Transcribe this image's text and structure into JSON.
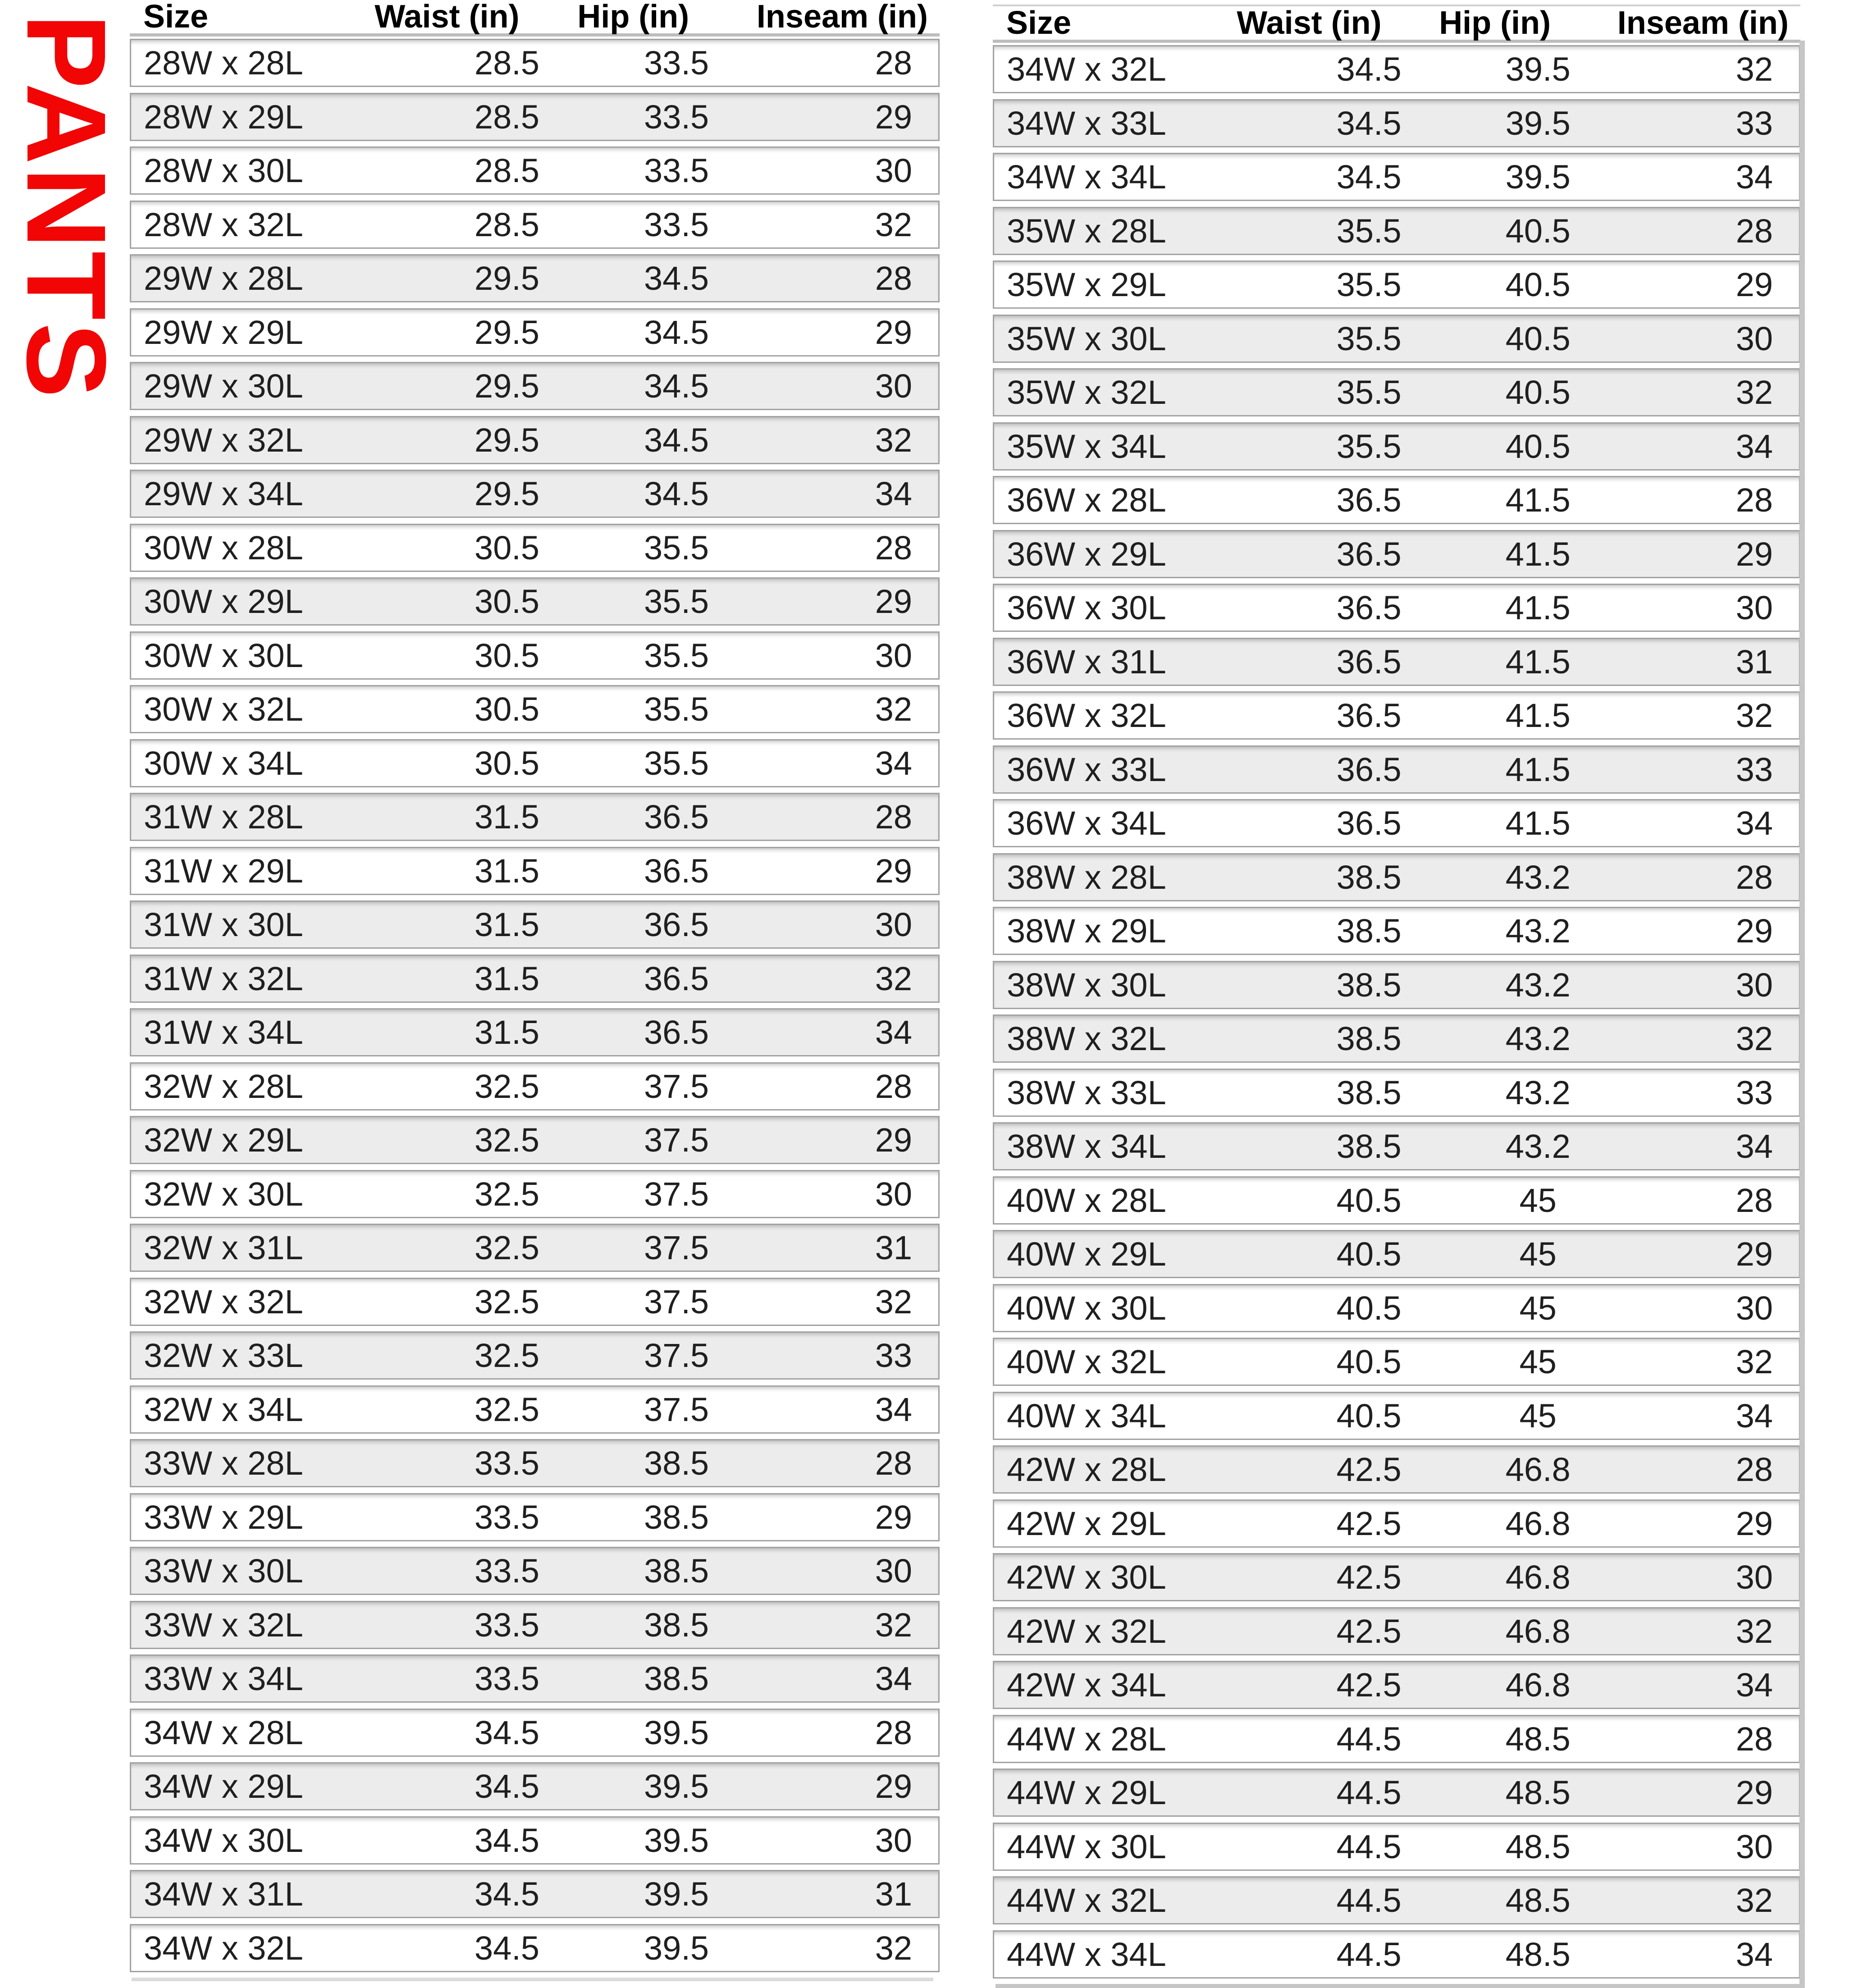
{
  "page": {
    "label": "PANTS"
  },
  "style": {
    "accent": "#f10505",
    "row_bg": "#ffffff",
    "row_shaded_bg": "#ececec",
    "row_border": "#a2a2a2",
    "text_color": "#1f1f1f",
    "header_color": "#000000"
  },
  "columns": [
    "Size",
    "Waist (in)",
    "Hip (in)",
    "Inseam (in)"
  ],
  "tables": {
    "left": {
      "rows": [
        {
          "size": "28W x 28L",
          "waist": "28.5",
          "hip": "33.5",
          "inseam": "28",
          "shaded": false
        },
        {
          "size": "28W x 29L",
          "waist": "28.5",
          "hip": "33.5",
          "inseam": "29",
          "shaded": true
        },
        {
          "size": "28W x 30L",
          "waist": "28.5",
          "hip": "33.5",
          "inseam": "30",
          "shaded": false
        },
        {
          "size": "28W x 32L",
          "waist": "28.5",
          "hip": "33.5",
          "inseam": "32",
          "shaded": false
        },
        {
          "size": "29W x 28L",
          "waist": "29.5",
          "hip": "34.5",
          "inseam": "28",
          "shaded": true
        },
        {
          "size": "29W x 29L",
          "waist": "29.5",
          "hip": "34.5",
          "inseam": "29",
          "shaded": false
        },
        {
          "size": "29W x 30L",
          "waist": "29.5",
          "hip": "34.5",
          "inseam": "30",
          "shaded": true
        },
        {
          "size": "29W x 32L",
          "waist": "29.5",
          "hip": "34.5",
          "inseam": "32",
          "shaded": true
        },
        {
          "size": "29W x 34L",
          "waist": "29.5",
          "hip": "34.5",
          "inseam": "34",
          "shaded": true
        },
        {
          "size": "30W x 28L",
          "waist": "30.5",
          "hip": "35.5",
          "inseam": "28",
          "shaded": false
        },
        {
          "size": "30W x 29L",
          "waist": "30.5",
          "hip": "35.5",
          "inseam": "29",
          "shaded": true
        },
        {
          "size": "30W x 30L",
          "waist": "30.5",
          "hip": "35.5",
          "inseam": "30",
          "shaded": false
        },
        {
          "size": "30W x 32L",
          "waist": "30.5",
          "hip": "35.5",
          "inseam": "32",
          "shaded": false
        },
        {
          "size": "30W x 34L",
          "waist": "30.5",
          "hip": "35.5",
          "inseam": "34",
          "shaded": false
        },
        {
          "size": "31W x 28L",
          "waist": "31.5",
          "hip": "36.5",
          "inseam": "28",
          "shaded": true
        },
        {
          "size": "31W x 29L",
          "waist": "31.5",
          "hip": "36.5",
          "inseam": "29",
          "shaded": false
        },
        {
          "size": "31W x 30L",
          "waist": "31.5",
          "hip": "36.5",
          "inseam": "30",
          "shaded": true
        },
        {
          "size": "31W x 32L",
          "waist": "31.5",
          "hip": "36.5",
          "inseam": "32",
          "shaded": true
        },
        {
          "size": "31W x 34L",
          "waist": "31.5",
          "hip": "36.5",
          "inseam": "34",
          "shaded": true
        },
        {
          "size": "32W x 28L",
          "waist": "32.5",
          "hip": "37.5",
          "inseam": "28",
          "shaded": false
        },
        {
          "size": "32W x 29L",
          "waist": "32.5",
          "hip": "37.5",
          "inseam": "29",
          "shaded": true
        },
        {
          "size": "32W x 30L",
          "waist": "32.5",
          "hip": "37.5",
          "inseam": "30",
          "shaded": false
        },
        {
          "size": "32W x 31L",
          "waist": "32.5",
          "hip": "37.5",
          "inseam": "31",
          "shaded": true
        },
        {
          "size": "32W x 32L",
          "waist": "32.5",
          "hip": "37.5",
          "inseam": "32",
          "shaded": false
        },
        {
          "size": "32W x 33L",
          "waist": "32.5",
          "hip": "37.5",
          "inseam": "33",
          "shaded": true
        },
        {
          "size": "32W x 34L",
          "waist": "32.5",
          "hip": "37.5",
          "inseam": "34",
          "shaded": false
        },
        {
          "size": "33W x 28L",
          "waist": "33.5",
          "hip": "38.5",
          "inseam": "28",
          "shaded": true
        },
        {
          "size": "33W x 29L",
          "waist": "33.5",
          "hip": "38.5",
          "inseam": "29",
          "shaded": false
        },
        {
          "size": "33W x 30L",
          "waist": "33.5",
          "hip": "38.5",
          "inseam": "30",
          "shaded": true
        },
        {
          "size": "33W x 32L",
          "waist": "33.5",
          "hip": "38.5",
          "inseam": "32",
          "shaded": true
        },
        {
          "size": "33W x 34L",
          "waist": "33.5",
          "hip": "38.5",
          "inseam": "34",
          "shaded": true
        },
        {
          "size": "34W x 28L",
          "waist": "34.5",
          "hip": "39.5",
          "inseam": "28",
          "shaded": false
        },
        {
          "size": "34W x 29L",
          "waist": "34.5",
          "hip": "39.5",
          "inseam": "29",
          "shaded": true
        },
        {
          "size": "34W x 30L",
          "waist": "34.5",
          "hip": "39.5",
          "inseam": "30",
          "shaded": false
        },
        {
          "size": "34W x 31L",
          "waist": "34.5",
          "hip": "39.5",
          "inseam": "31",
          "shaded": true
        },
        {
          "size": "34W x 32L",
          "waist": "34.5",
          "hip": "39.5",
          "inseam": "32",
          "shaded": false
        }
      ]
    },
    "right": {
      "rows": [
        {
          "size": "34W x 32L",
          "waist": "34.5",
          "hip": "39.5",
          "inseam": "32",
          "shaded": false
        },
        {
          "size": "34W x 33L",
          "waist": "34.5",
          "hip": "39.5",
          "inseam": "33",
          "shaded": true
        },
        {
          "size": "34W x 34L",
          "waist": "34.5",
          "hip": "39.5",
          "inseam": "34",
          "shaded": false
        },
        {
          "size": "35W x 28L",
          "waist": "35.5",
          "hip": "40.5",
          "inseam": "28",
          "shaded": true
        },
        {
          "size": "35W x 29L",
          "waist": "35.5",
          "hip": "40.5",
          "inseam": "29",
          "shaded": false
        },
        {
          "size": "35W x 30L",
          "waist": "35.5",
          "hip": "40.5",
          "inseam": "30",
          "shaded": true
        },
        {
          "size": "35W x 32L",
          "waist": "35.5",
          "hip": "40.5",
          "inseam": "32",
          "shaded": true
        },
        {
          "size": "35W x 34L",
          "waist": "35.5",
          "hip": "40.5",
          "inseam": "34",
          "shaded": true
        },
        {
          "size": "36W x 28L",
          "waist": "36.5",
          "hip": "41.5",
          "inseam": "28",
          "shaded": false
        },
        {
          "size": "36W x 29L",
          "waist": "36.5",
          "hip": "41.5",
          "inseam": "29",
          "shaded": true
        },
        {
          "size": "36W x 30L",
          "waist": "36.5",
          "hip": "41.5",
          "inseam": "30",
          "shaded": false
        },
        {
          "size": "36W x 31L",
          "waist": "36.5",
          "hip": "41.5",
          "inseam": "31",
          "shaded": true
        },
        {
          "size": "36W x 32L",
          "waist": "36.5",
          "hip": "41.5",
          "inseam": "32",
          "shaded": false
        },
        {
          "size": "36W x 33L",
          "waist": "36.5",
          "hip": "41.5",
          "inseam": "33",
          "shaded": true
        },
        {
          "size": "36W x 34L",
          "waist": "36.5",
          "hip": "41.5",
          "inseam": "34",
          "shaded": false
        },
        {
          "size": "38W x 28L",
          "waist": "38.5",
          "hip": "43.2",
          "inseam": "28",
          "shaded": true
        },
        {
          "size": "38W x 29L",
          "waist": "38.5",
          "hip": "43.2",
          "inseam": "29",
          "shaded": false
        },
        {
          "size": "38W x 30L",
          "waist": "38.5",
          "hip": "43.2",
          "inseam": "30",
          "shaded": true
        },
        {
          "size": "38W x 32L",
          "waist": "38.5",
          "hip": "43.2",
          "inseam": "32",
          "shaded": true
        },
        {
          "size": "38W x 33L",
          "waist": "38.5",
          "hip": "43.2",
          "inseam": "33",
          "shaded": false
        },
        {
          "size": "38W x 34L",
          "waist": "38.5",
          "hip": "43.2",
          "inseam": "34",
          "shaded": true
        },
        {
          "size": "40W x 28L",
          "waist": "40.5",
          "hip": "45",
          "inseam": "28",
          "shaded": false
        },
        {
          "size": "40W x 29L",
          "waist": "40.5",
          "hip": "45",
          "inseam": "29",
          "shaded": true
        },
        {
          "size": "40W x 30L",
          "waist": "40.5",
          "hip": "45",
          "inseam": "30",
          "shaded": false
        },
        {
          "size": "40W x 32L",
          "waist": "40.5",
          "hip": "45",
          "inseam": "32",
          "shaded": false
        },
        {
          "size": "40W x 34L",
          "waist": "40.5",
          "hip": "45",
          "inseam": "34",
          "shaded": false
        },
        {
          "size": "42W x 28L",
          "waist": "42.5",
          "hip": "46.8",
          "inseam": "28",
          "shaded": true
        },
        {
          "size": "42W x 29L",
          "waist": "42.5",
          "hip": "46.8",
          "inseam": "29",
          "shaded": false
        },
        {
          "size": "42W x 30L",
          "waist": "42.5",
          "hip": "46.8",
          "inseam": "30",
          "shaded": true
        },
        {
          "size": "42W x 32L",
          "waist": "42.5",
          "hip": "46.8",
          "inseam": "32",
          "shaded": true
        },
        {
          "size": "42W x 34L",
          "waist": "42.5",
          "hip": "46.8",
          "inseam": "34",
          "shaded": true
        },
        {
          "size": "44W x 28L",
          "waist": "44.5",
          "hip": "48.5",
          "inseam": "28",
          "shaded": false
        },
        {
          "size": "44W x 29L",
          "waist": "44.5",
          "hip": "48.5",
          "inseam": "29",
          "shaded": true
        },
        {
          "size": "44W x 30L",
          "waist": "44.5",
          "hip": "48.5",
          "inseam": "30",
          "shaded": false
        },
        {
          "size": "44W x 32L",
          "waist": "44.5",
          "hip": "48.5",
          "inseam": "32",
          "shaded": true
        },
        {
          "size": "44W x 34L",
          "waist": "44.5",
          "hip": "48.5",
          "inseam": "34",
          "shaded": false
        }
      ]
    }
  }
}
